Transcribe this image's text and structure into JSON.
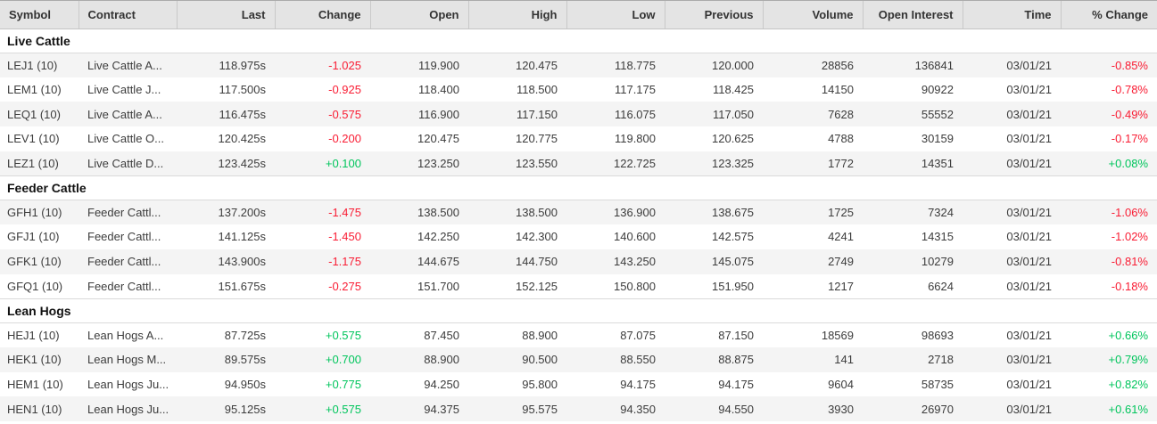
{
  "colors": {
    "positive": "#00c55c",
    "negative": "#f91c33",
    "header_bg": "#e4e4e4",
    "row_stripe": "#f4f4f4",
    "text": "#3c3c3c"
  },
  "table": {
    "columns": [
      {
        "label": "Symbol",
        "align": "left"
      },
      {
        "label": "Contract",
        "align": "left"
      },
      {
        "label": "Last",
        "align": "right"
      },
      {
        "label": "Change",
        "align": "right"
      },
      {
        "label": "Open",
        "align": "right"
      },
      {
        "label": "High",
        "align": "right"
      },
      {
        "label": "Low",
        "align": "right"
      },
      {
        "label": "Previous",
        "align": "right"
      },
      {
        "label": "Volume",
        "align": "right"
      },
      {
        "label": "Open Interest",
        "align": "right"
      },
      {
        "label": "Time",
        "align": "right"
      },
      {
        "label": "% Change",
        "align": "right"
      }
    ],
    "sections": [
      {
        "title": "Live Cattle",
        "rows": [
          {
            "symbol": "LEJ1 (10)",
            "contract": "Live Cattle A...",
            "last": "118.975s",
            "change": "-1.025",
            "open": "119.900",
            "high": "120.475",
            "low": "118.775",
            "previous": "120.000",
            "volume": "28856",
            "open_interest": "136841",
            "time": "03/01/21",
            "pct_change": "-0.85%"
          },
          {
            "symbol": "LEM1 (10)",
            "contract": "Live Cattle J...",
            "last": "117.500s",
            "change": "-0.925",
            "open": "118.400",
            "high": "118.500",
            "low": "117.175",
            "previous": "118.425",
            "volume": "14150",
            "open_interest": "90922",
            "time": "03/01/21",
            "pct_change": "-0.78%"
          },
          {
            "symbol": "LEQ1 (10)",
            "contract": "Live Cattle A...",
            "last": "116.475s",
            "change": "-0.575",
            "open": "116.900",
            "high": "117.150",
            "low": "116.075",
            "previous": "117.050",
            "volume": "7628",
            "open_interest": "55552",
            "time": "03/01/21",
            "pct_change": "-0.49%"
          },
          {
            "symbol": "LEV1 (10)",
            "contract": "Live Cattle O...",
            "last": "120.425s",
            "change": "-0.200",
            "open": "120.475",
            "high": "120.775",
            "low": "119.800",
            "previous": "120.625",
            "volume": "4788",
            "open_interest": "30159",
            "time": "03/01/21",
            "pct_change": "-0.17%"
          },
          {
            "symbol": "LEZ1 (10)",
            "contract": "Live Cattle D...",
            "last": "123.425s",
            "change": "+0.100",
            "open": "123.250",
            "high": "123.550",
            "low": "122.725",
            "previous": "123.325",
            "volume": "1772",
            "open_interest": "14351",
            "time": "03/01/21",
            "pct_change": "+0.08%"
          }
        ]
      },
      {
        "title": "Feeder Cattle",
        "rows": [
          {
            "symbol": "GFH1 (10)",
            "contract": "Feeder Cattl...",
            "last": "137.200s",
            "change": "-1.475",
            "open": "138.500",
            "high": "138.500",
            "low": "136.900",
            "previous": "138.675",
            "volume": "1725",
            "open_interest": "7324",
            "time": "03/01/21",
            "pct_change": "-1.06%"
          },
          {
            "symbol": "GFJ1 (10)",
            "contract": "Feeder Cattl...",
            "last": "141.125s",
            "change": "-1.450",
            "open": "142.250",
            "high": "142.300",
            "low": "140.600",
            "previous": "142.575",
            "volume": "4241",
            "open_interest": "14315",
            "time": "03/01/21",
            "pct_change": "-1.02%"
          },
          {
            "symbol": "GFK1 (10)",
            "contract": "Feeder Cattl...",
            "last": "143.900s",
            "change": "-1.175",
            "open": "144.675",
            "high": "144.750",
            "low": "143.250",
            "previous": "145.075",
            "volume": "2749",
            "open_interest": "10279",
            "time": "03/01/21",
            "pct_change": "-0.81%"
          },
          {
            "symbol": "GFQ1 (10)",
            "contract": "Feeder Cattl...",
            "last": "151.675s",
            "change": "-0.275",
            "open": "151.700",
            "high": "152.125",
            "low": "150.800",
            "previous": "151.950",
            "volume": "1217",
            "open_interest": "6624",
            "time": "03/01/21",
            "pct_change": "-0.18%"
          }
        ]
      },
      {
        "title": "Lean Hogs",
        "rows": [
          {
            "symbol": "HEJ1 (10)",
            "contract": "Lean Hogs A...",
            "last": "87.725s",
            "change": "+0.575",
            "open": "87.450",
            "high": "88.900",
            "low": "87.075",
            "previous": "87.150",
            "volume": "18569",
            "open_interest": "98693",
            "time": "03/01/21",
            "pct_change": "+0.66%"
          },
          {
            "symbol": "HEK1 (10)",
            "contract": "Lean Hogs M...",
            "last": "89.575s",
            "change": "+0.700",
            "open": "88.900",
            "high": "90.500",
            "low": "88.550",
            "previous": "88.875",
            "volume": "141",
            "open_interest": "2718",
            "time": "03/01/21",
            "pct_change": "+0.79%"
          },
          {
            "symbol": "HEM1 (10)",
            "contract": "Lean Hogs Ju...",
            "last": "94.950s",
            "change": "+0.775",
            "open": "94.250",
            "high": "95.800",
            "low": "94.175",
            "previous": "94.175",
            "volume": "9604",
            "open_interest": "58735",
            "time": "03/01/21",
            "pct_change": "+0.82%"
          },
          {
            "symbol": "HEN1 (10)",
            "contract": "Lean Hogs Ju...",
            "last": "95.125s",
            "change": "+0.575",
            "open": "94.375",
            "high": "95.575",
            "low": "94.350",
            "previous": "94.550",
            "volume": "3930",
            "open_interest": "26970",
            "time": "03/01/21",
            "pct_change": "+0.61%"
          }
        ]
      }
    ]
  }
}
